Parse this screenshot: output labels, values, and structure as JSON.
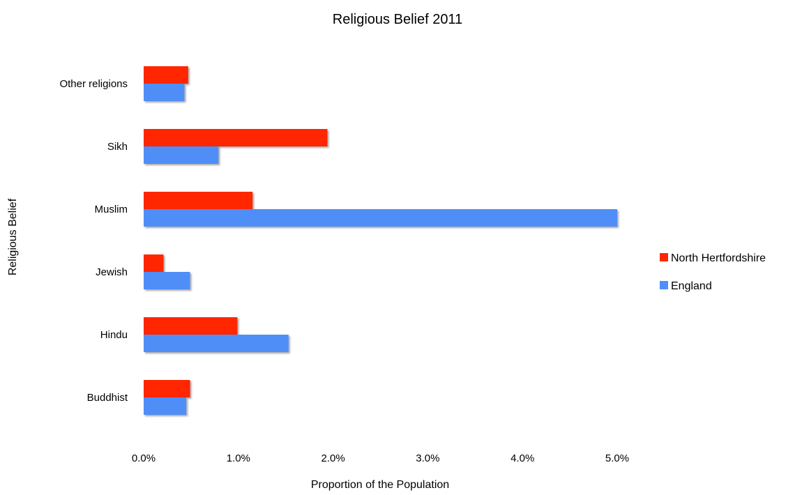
{
  "chart_data": {
    "type": "bar",
    "orientation": "horizontal",
    "title": "Religious Belief 2011",
    "xlabel": "Proportion of the Population",
    "ylabel": "Religious Belief",
    "categories": [
      "Buddhist",
      "Hindu",
      "Jewish",
      "Muslim",
      "Sikh",
      "Other religions"
    ],
    "series": [
      {
        "name": "North Hertfordshire",
        "color": "#ff2600",
        "values": [
          0.49,
          0.99,
          0.21,
          1.15,
          1.94,
          0.47
        ]
      },
      {
        "name": "England",
        "color": "#4f8ef7",
        "values": [
          0.45,
          1.53,
          0.49,
          5.0,
          0.79,
          0.43
        ]
      }
    ],
    "xlim": [
      0,
      5
    ],
    "xticks": [
      0,
      1,
      2,
      3,
      4,
      5
    ],
    "xtick_labels": [
      "0.0%",
      "1.0%",
      "2.0%",
      "3.0%",
      "4.0%",
      "5.0%"
    ],
    "grid": false,
    "legend_position": "right"
  }
}
